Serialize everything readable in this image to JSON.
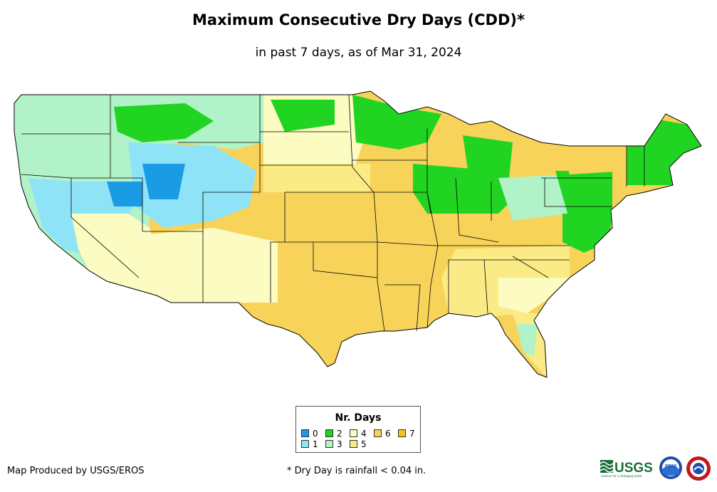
{
  "title": "Maximum Consecutive Dry Days (CDD)*",
  "subtitle": "in past 7 days, as of Mar 31, 2024",
  "legend": {
    "title": "Nr. Days",
    "items": [
      {
        "label": "0",
        "color": "#1a9be3"
      },
      {
        "label": "1",
        "color": "#8fe3f7"
      },
      {
        "label": "2",
        "color": "#22d422"
      },
      {
        "label": "3",
        "color": "#b1f2c9"
      },
      {
        "label": "4",
        "color": "#fbfbc2"
      },
      {
        "label": "5",
        "color": "#fbeb86"
      },
      {
        "label": "6",
        "color": "#f8d35a"
      },
      {
        "label": "7",
        "color": "#f6c21f"
      }
    ]
  },
  "credit": "Map Produced by USGS/EROS",
  "footnote": "* Dry Day is rainfall < 0.04 in.",
  "logos": {
    "usgs_text": "USGS",
    "usgs_tagline": "science for a changing world",
    "noaa_text": "noaa"
  },
  "map": {
    "region": "Contiguous United States",
    "regions": [
      {
        "name": "pacific-northwest",
        "days": 3
      },
      {
        "name": "california-nevada",
        "days": 1
      },
      {
        "name": "northern-rockies",
        "days": 2
      },
      {
        "name": "central-rockies",
        "days": 1
      },
      {
        "name": "southwest",
        "days": 4
      },
      {
        "name": "northern-plains",
        "days": 4
      },
      {
        "name": "upper-midwest",
        "days": 2
      },
      {
        "name": "central-plains",
        "days": 6
      },
      {
        "name": "southern-plains",
        "days": 6
      },
      {
        "name": "great-lakes",
        "days": 2
      },
      {
        "name": "ohio-valley",
        "days": 3
      },
      {
        "name": "southeast",
        "days": 5
      },
      {
        "name": "mid-atlantic",
        "days": 2
      },
      {
        "name": "new-england",
        "days": 2
      },
      {
        "name": "florida",
        "days": 5
      }
    ]
  }
}
